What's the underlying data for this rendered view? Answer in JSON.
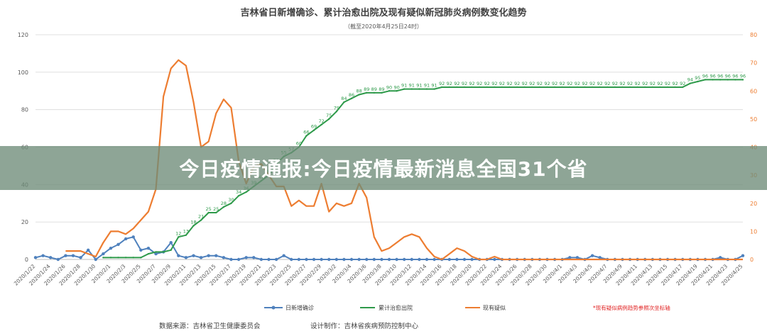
{
  "banner": {
    "text": "今日疫情通报:今日疫情最新消息全国31个省"
  },
  "chart_data": {
    "type": "line",
    "title": "吉林省日新增确诊、累计治愈出院及现有疑似新冠肺炎病例数变化趋势",
    "subtitle": "（截至2020年4月25日24时）",
    "y_left": {
      "ylim": [
        0,
        120
      ],
      "ticks": [
        0,
        20,
        40,
        60,
        80,
        100,
        120
      ]
    },
    "y_right": {
      "ylim": [
        0,
        80
      ],
      "ticks": [
        0,
        10,
        20,
        30,
        40,
        50,
        60,
        70,
        80
      ]
    },
    "x_ticks": [
      "2020/1/22",
      "2020/1/24",
      "2020/1/26",
      "2020/1/28",
      "2020/1/30",
      "2020/2/1",
      "2020/2/3",
      "2020/2/5",
      "2020/2/7",
      "2020/2/9",
      "2020/2/11",
      "2020/2/13",
      "2020/2/15",
      "2020/2/17",
      "2020/2/19",
      "2020/2/21",
      "2020/2/23",
      "2020/2/25",
      "2020/2/27",
      "2020/2/29",
      "2020/3/2",
      "2020/3/4",
      "2020/3/6",
      "2020/3/8",
      "2020/3/10",
      "2020/3/12",
      "2020/3/14",
      "2020/3/16",
      "2020/3/18",
      "2020/3/20",
      "2020/3/22",
      "2020/3/24",
      "2020/3/26",
      "2020/3/28",
      "2020/3/30",
      "2020/4/1",
      "2020/4/3",
      "2020/4/5",
      "2020/4/7",
      "2020/4/9",
      "2020/4/11",
      "2020/4/13",
      "2020/4/15",
      "2020/4/17",
      "2020/4/19",
      "2020/4/21",
      "2020/4/23",
      "2020/4/25"
    ],
    "series": [
      {
        "name": "日新增确诊",
        "axis": "left",
        "color": "#4f81bd",
        "values": [
          1,
          2,
          1,
          0,
          2,
          2,
          1,
          5,
          0,
          3,
          6,
          8,
          11,
          12,
          5,
          6,
          3,
          4,
          9,
          2,
          1,
          2,
          1,
          2,
          2,
          1,
          0,
          0,
          1,
          1,
          0,
          0,
          0,
          2,
          0,
          0,
          0,
          0,
          0,
          0,
          0,
          0,
          0,
          0,
          0,
          0,
          0,
          0,
          0,
          0,
          0,
          0,
          0,
          0,
          0,
          0,
          0,
          0,
          0,
          0,
          0,
          0,
          0,
          0,
          0,
          0,
          0,
          0,
          0,
          0,
          0,
          1,
          1,
          0,
          2,
          1,
          0,
          0,
          0,
          0,
          0,
          0,
          0,
          0,
          0,
          0,
          0,
          0,
          0,
          0,
          0,
          1,
          0,
          0,
          2,
          0,
          0,
          0,
          0,
          2,
          0,
          2,
          0,
          1,
          1,
          1,
          0
        ]
      },
      {
        "name": "累计治愈出院",
        "axis": "left",
        "color": "#2e9a4a",
        "start_index": 9,
        "values": [
          1,
          1,
          1,
          1,
          1,
          1,
          3,
          4,
          4,
          5,
          12,
          13,
          18,
          21,
          25,
          25,
          28,
          30,
          34,
          36,
          39,
          42,
          45,
          51,
          55,
          57,
          60,
          66,
          69,
          72,
          75,
          79,
          84,
          86,
          88,
          89,
          89,
          89,
          90,
          90,
          91,
          91,
          91,
          91,
          91,
          92,
          92,
          92,
          92,
          92,
          92,
          92,
          92,
          92,
          92,
          92,
          92,
          92,
          92,
          92,
          92,
          92,
          92,
          92,
          92,
          92,
          92,
          92,
          92,
          92,
          92,
          92,
          92,
          92,
          92,
          92,
          92,
          92,
          94,
          95,
          96,
          96,
          96,
          96,
          96,
          96,
          96,
          96,
          96,
          97,
          97,
          97,
          97,
          97,
          97,
          97,
          98,
          98,
          98,
          98,
          99,
          99,
          99,
          99,
          99,
          99,
          99
        ]
      },
      {
        "name": "现有疑似",
        "axis": "right",
        "color": "#ed7d31",
        "start_index": 4,
        "values": [
          3,
          3,
          3,
          2,
          1,
          6,
          10,
          10,
          9,
          11,
          14,
          17,
          25,
          58,
          68,
          71,
          69,
          56,
          40,
          42,
          52,
          57,
          54,
          35,
          27,
          33,
          34,
          30,
          26,
          26,
          19,
          21,
          19,
          19,
          27,
          17,
          20,
          19,
          20,
          27,
          22,
          8,
          3,
          4,
          6,
          8,
          9,
          8,
          4,
          1,
          0,
          2,
          4,
          3,
          1,
          0,
          0,
          1,
          0,
          0,
          0,
          0,
          0,
          0,
          0,
          0,
          0,
          0,
          0,
          0,
          0,
          0,
          0,
          0,
          0,
          0,
          0,
          0,
          0,
          0,
          0,
          0,
          0,
          0,
          0,
          0,
          0,
          0,
          0,
          0,
          0,
          0,
          0,
          0,
          0,
          0,
          0,
          0,
          0,
          0,
          0,
          0,
          0,
          0,
          0,
          0,
          0
        ]
      }
    ],
    "legend": {
      "placement": "bottom",
      "note": "*现有疑似病例趋势参照次坐标轴",
      "note_color": "#e02020"
    },
    "footer": {
      "source": "数据来源：吉林省卫生健康委员会",
      "design": "设计制作：吉林省疾病预防控制中心"
    }
  }
}
